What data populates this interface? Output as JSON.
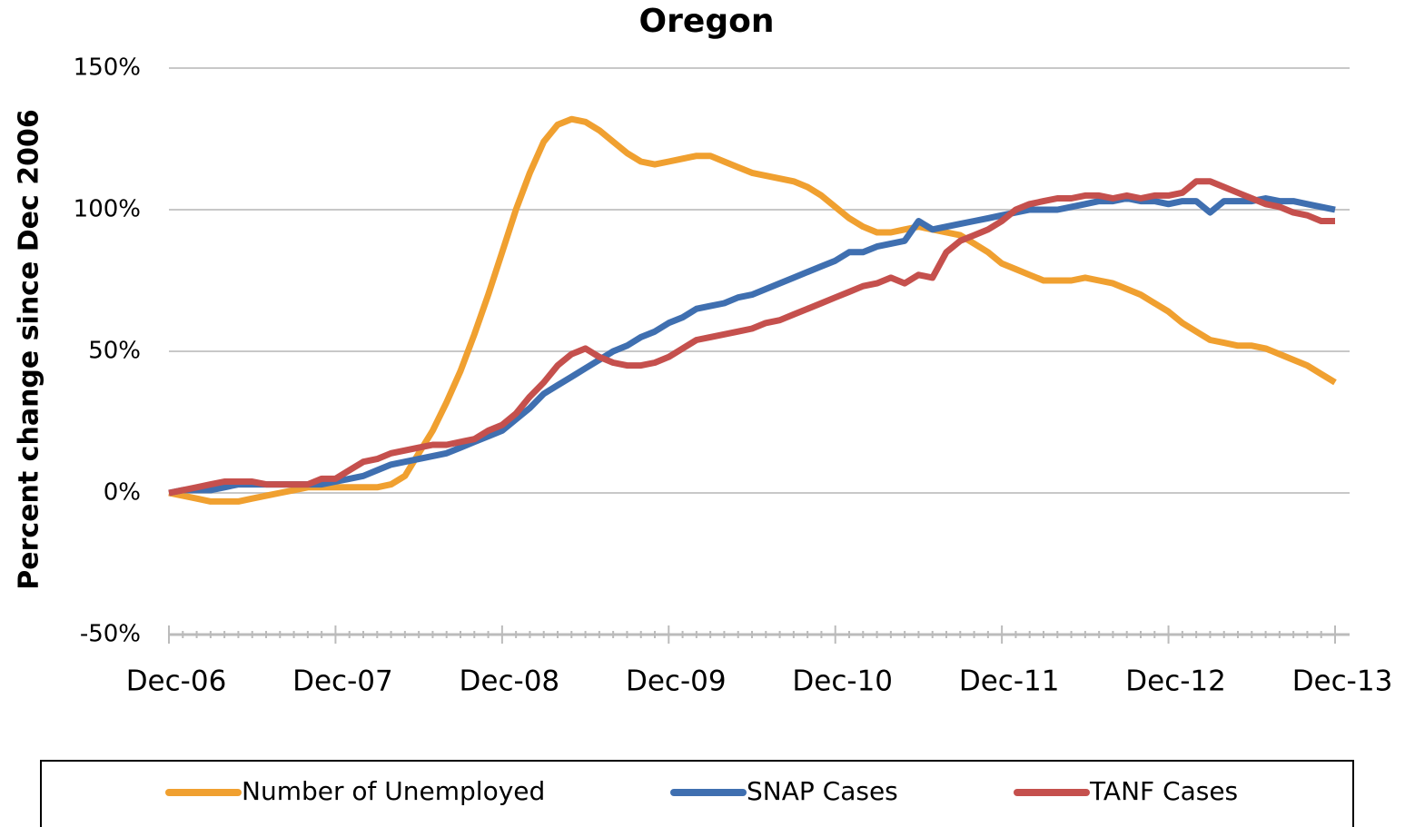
{
  "chart_data": {
    "type": "line",
    "title": "Oregon",
    "y_label": "Percent change since Dec 2006",
    "categories": [
      "Dec-06",
      null,
      null,
      null,
      null,
      null,
      null,
      null,
      null,
      null,
      null,
      null,
      "Dec-07",
      null,
      null,
      null,
      null,
      null,
      null,
      null,
      null,
      null,
      null,
      null,
      "Dec-08",
      null,
      null,
      null,
      null,
      null,
      null,
      null,
      null,
      null,
      null,
      null,
      "Dec-09",
      null,
      null,
      null,
      null,
      null,
      null,
      null,
      null,
      null,
      null,
      null,
      "Dec-10",
      null,
      null,
      null,
      null,
      null,
      null,
      null,
      null,
      null,
      null,
      null,
      "Dec-11",
      null,
      null,
      null,
      null,
      null,
      null,
      null,
      null,
      null,
      null,
      null,
      "Dec-12",
      null,
      null,
      null,
      null,
      null,
      null,
      null,
      null,
      null,
      null,
      null,
      "Dec-13"
    ],
    "series": [
      {
        "name": "Number of Unemployed",
        "color": "#f0a030",
        "values": [
          0,
          -1,
          -2,
          -3,
          -3,
          -3,
          -2,
          -1,
          0,
          1,
          2,
          2,
          2,
          2,
          2,
          2,
          3,
          6,
          14,
          22,
          32,
          43,
          56,
          70,
          85,
          100,
          113,
          124,
          130,
          132,
          131,
          128,
          124,
          120,
          117,
          116,
          117,
          118,
          119,
          119,
          117,
          115,
          113,
          112,
          111,
          110,
          108,
          105,
          101,
          97,
          94,
          92,
          92,
          93,
          94,
          93,
          92,
          91,
          88,
          85,
          81,
          79,
          77,
          75,
          75,
          75,
          76,
          75,
          74,
          72,
          70,
          67,
          64,
          60,
          57,
          54,
          53,
          52,
          52,
          51,
          49,
          47,
          45,
          42,
          39
        ]
      },
      {
        "name": "SNAP Cases",
        "color": "#3f6fb0",
        "values": [
          0,
          1,
          1,
          1,
          2,
          3,
          3,
          3,
          3,
          3,
          3,
          3,
          4,
          5,
          6,
          8,
          10,
          11,
          12,
          13,
          14,
          16,
          18,
          20,
          22,
          26,
          30,
          35,
          38,
          41,
          44,
          47,
          50,
          52,
          55,
          57,
          60,
          62,
          65,
          66,
          67,
          69,
          70,
          72,
          74,
          76,
          78,
          80,
          82,
          85,
          85,
          87,
          88,
          89,
          96,
          93,
          94,
          95,
          96,
          97,
          98,
          99,
          100,
          100,
          100,
          101,
          102,
          103,
          103,
          104,
          103,
          103,
          102,
          103,
          103,
          99,
          103,
          103,
          103,
          104,
          103,
          103,
          102,
          101,
          100
        ]
      },
      {
        "name": "TANF Cases",
        "color": "#c5504d",
        "values": [
          0,
          1,
          2,
          3,
          4,
          4,
          4,
          3,
          3,
          3,
          3,
          5,
          5,
          8,
          11,
          12,
          14,
          15,
          16,
          17,
          17,
          18,
          19,
          22,
          24,
          28,
          34,
          39,
          45,
          49,
          51,
          48,
          46,
          45,
          45,
          46,
          48,
          51,
          54,
          55,
          56,
          57,
          58,
          60,
          61,
          63,
          65,
          67,
          69,
          71,
          73,
          74,
          76,
          74,
          77,
          76,
          85,
          89,
          91,
          93,
          96,
          100,
          102,
          103,
          104,
          104,
          105,
          105,
          104,
          105,
          104,
          105,
          105,
          106,
          110,
          110,
          108,
          106,
          104,
          102,
          101,
          99,
          98,
          96,
          96
        ]
      }
    ],
    "ylim": [
      -50,
      150
    ],
    "yticks": [
      {
        "value": -50,
        "label": "-50%"
      },
      {
        "value": 0,
        "label": "0%"
      },
      {
        "value": 50,
        "label": "50%"
      },
      {
        "value": 100,
        "label": "100%"
      },
      {
        "value": 150,
        "label": "150%"
      }
    ],
    "grid": true
  }
}
